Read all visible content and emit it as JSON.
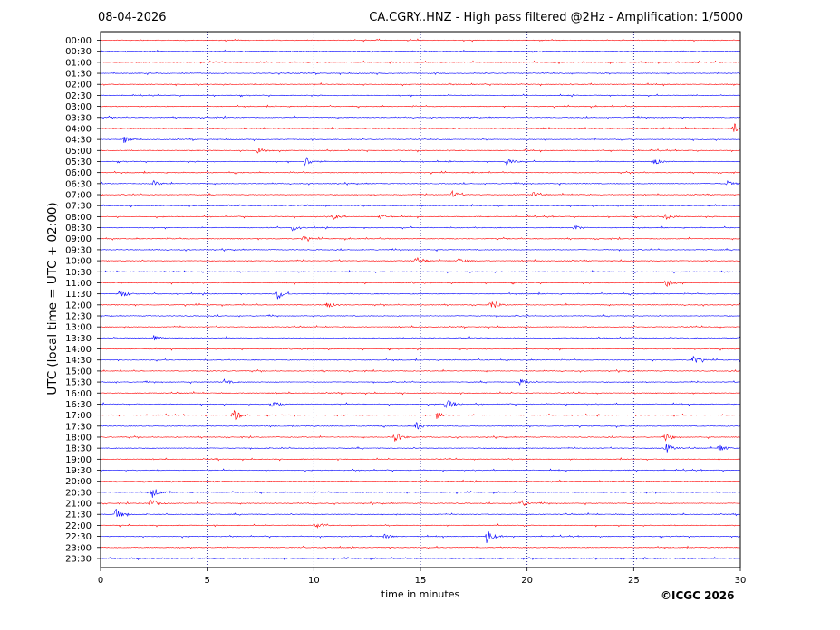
{
  "header": {
    "date": "08-04-2026",
    "title": "CA.CGRY..HNZ - High pass filtered @2Hz - Amplification: 1/5000"
  },
  "footer": {
    "copyright": "©ICGC 2026"
  },
  "chart_data": {
    "type": "line",
    "title": "CA.CGRY..HNZ - High pass filtered @2Hz - Amplification: 1/5000",
    "xlabel": "time in minutes",
    "ylabel": "UTC (local time = UTC + 02:00)",
    "xlim": [
      0,
      30
    ],
    "x_ticks": [
      0,
      5,
      10,
      15,
      20,
      25,
      30
    ],
    "x_tick_labels": [
      "0",
      "5",
      "10",
      "15",
      "20",
      "25",
      "30"
    ],
    "vertical_gridlines": [
      5,
      10,
      15,
      20,
      25
    ],
    "row_labels": [
      "00:00",
      "00:30",
      "01:00",
      "01:30",
      "02:00",
      "02:30",
      "03:00",
      "03:30",
      "04:00",
      "04:30",
      "05:00",
      "05:30",
      "06:00",
      "06:30",
      "07:00",
      "07:30",
      "08:00",
      "08:30",
      "09:00",
      "09:30",
      "10:00",
      "10:30",
      "11:00",
      "11:30",
      "12:00",
      "12:30",
      "13:00",
      "13:30",
      "14:00",
      "14:30",
      "15:00",
      "15:30",
      "16:00",
      "16:30",
      "17:00",
      "17:30",
      "18:00",
      "18:30",
      "19:00",
      "19:30",
      "20:00",
      "20:30",
      "21:00",
      "21:30",
      "22:00",
      "22:30",
      "23:00",
      "23:30"
    ],
    "colors": {
      "even_rows": "#ff0000",
      "odd_rows": "#0000ff"
    },
    "events": [
      {
        "row": 8,
        "t": 29.7,
        "a": 6
      },
      {
        "row": 9,
        "t": 1.1,
        "a": 4
      },
      {
        "row": 10,
        "t": 7.4,
        "a": 4
      },
      {
        "row": 11,
        "t": 9.6,
        "a": 6
      },
      {
        "row": 11,
        "t": 19.0,
        "a": 5
      },
      {
        "row": 11,
        "t": 25.9,
        "a": 5
      },
      {
        "row": 13,
        "t": 2.5,
        "a": 3
      },
      {
        "row": 13,
        "t": 29.4,
        "a": 3
      },
      {
        "row": 14,
        "t": 16.5,
        "a": 4
      },
      {
        "row": 14,
        "t": 20.3,
        "a": 3
      },
      {
        "row": 16,
        "t": 10.9,
        "a": 3
      },
      {
        "row": 16,
        "t": 13.1,
        "a": 3
      },
      {
        "row": 16,
        "t": 26.5,
        "a": 4
      },
      {
        "row": 17,
        "t": 9.0,
        "a": 4
      },
      {
        "row": 17,
        "t": 22.2,
        "a": 3
      },
      {
        "row": 18,
        "t": 9.5,
        "a": 3
      },
      {
        "row": 20,
        "t": 14.8,
        "a": 4
      },
      {
        "row": 20,
        "t": 16.8,
        "a": 3
      },
      {
        "row": 22,
        "t": 26.5,
        "a": 5
      },
      {
        "row": 23,
        "t": 0.9,
        "a": 6
      },
      {
        "row": 23,
        "t": 8.3,
        "a": 6
      },
      {
        "row": 24,
        "t": 10.6,
        "a": 4
      },
      {
        "row": 24,
        "t": 18.3,
        "a": 7
      },
      {
        "row": 27,
        "t": 2.5,
        "a": 3
      },
      {
        "row": 29,
        "t": 27.8,
        "a": 5
      },
      {
        "row": 31,
        "t": 5.8,
        "a": 3
      },
      {
        "row": 31,
        "t": 19.7,
        "a": 4
      },
      {
        "row": 33,
        "t": 8.0,
        "a": 4
      },
      {
        "row": 33,
        "t": 16.2,
        "a": 8
      },
      {
        "row": 34,
        "t": 6.2,
        "a": 8
      },
      {
        "row": 34,
        "t": 15.8,
        "a": 5
      },
      {
        "row": 35,
        "t": 14.8,
        "a": 5
      },
      {
        "row": 36,
        "t": 13.8,
        "a": 7
      },
      {
        "row": 36,
        "t": 26.5,
        "a": 4
      },
      {
        "row": 37,
        "t": 26.5,
        "a": 6
      },
      {
        "row": 37,
        "t": 29.0,
        "a": 5
      },
      {
        "row": 41,
        "t": 2.4,
        "a": 7
      },
      {
        "row": 42,
        "t": 2.3,
        "a": 6
      },
      {
        "row": 42,
        "t": 19.7,
        "a": 5
      },
      {
        "row": 43,
        "t": 0.7,
        "a": 7
      },
      {
        "row": 44,
        "t": 10.1,
        "a": 4
      },
      {
        "row": 45,
        "t": 18.1,
        "a": 9
      },
      {
        "row": 45,
        "t": 13.3,
        "a": 3
      }
    ]
  }
}
